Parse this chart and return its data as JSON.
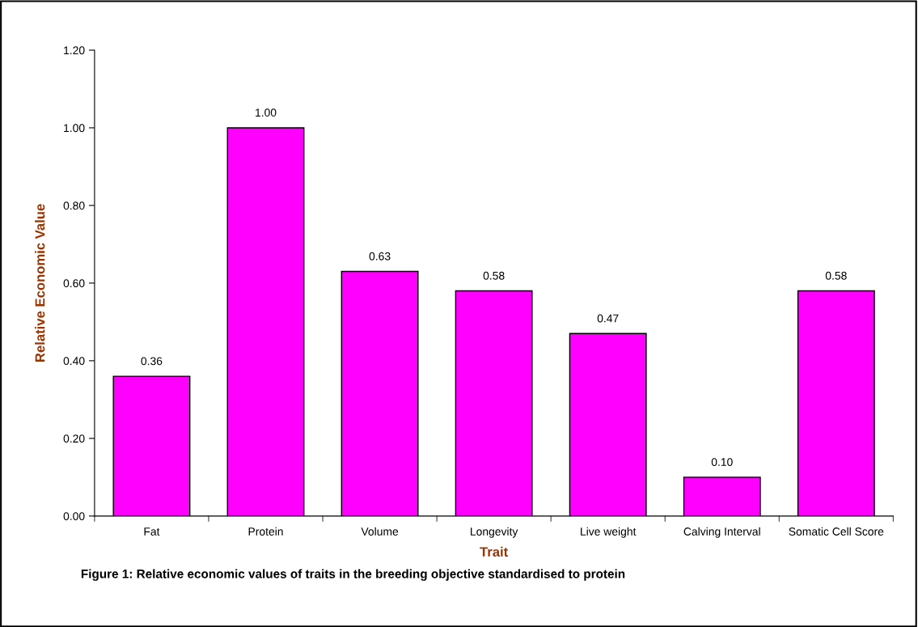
{
  "chart_data": {
    "type": "bar",
    "xlabel": "Trait",
    "ylabel": "Relative Economic Value",
    "categories": [
      "Fat",
      "Protein",
      "Volume",
      "Longevity",
      "Live weight",
      "Calving Interval",
      "Somatic Cell Score"
    ],
    "values": [
      0.36,
      1.0,
      0.63,
      0.58,
      0.47,
      0.1,
      0.58
    ],
    "value_labels": [
      "0.36",
      "1.00",
      "0.63",
      "0.58",
      "0.47",
      "0.10",
      "0.58"
    ],
    "color": "#ff00ff",
    "ylim": [
      0,
      1.2
    ],
    "yticks": [
      {
        "value": 0,
        "label": "0.00"
      },
      {
        "value": 0.2,
        "label": "0.20"
      },
      {
        "value": 0.4,
        "label": "0.40"
      },
      {
        "value": 0.6,
        "label": "0.60"
      },
      {
        "value": 0.8,
        "label": "0.80"
      },
      {
        "value": 1.0,
        "label": "1.00"
      },
      {
        "value": 1.2,
        "label": "1.20"
      }
    ],
    "grid": false,
    "legend": false,
    "annotations": [
      "Figure 1: Relative economic values of traits in the breeding objective standardised to protein"
    ]
  }
}
